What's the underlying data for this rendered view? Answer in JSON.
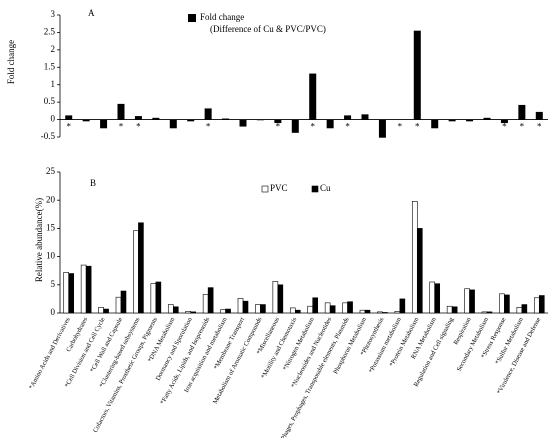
{
  "chart_data": [
    {
      "type": "bar",
      "title": "A",
      "ylabel": "Fold change",
      "series": [
        {
          "name": "Fold change",
          "color": "#000000",
          "values": [
            0.12,
            -0.05,
            -0.25,
            0.45,
            0.1,
            0.05,
            -0.25,
            -0.05,
            0.32,
            0.03,
            -0.2,
            -0.02,
            -0.1,
            -0.38,
            1.32,
            -0.25,
            0.12,
            0.15,
            -0.52,
            0.0,
            2.55,
            -0.25,
            -0.05,
            -0.05,
            0.05,
            -0.1,
            0.42,
            0.22
          ]
        }
      ],
      "legend_note": "(Difference of Cu & PVC/PVC)",
      "annotations": [
        "*",
        null,
        "*",
        "*",
        "*",
        null,
        "*",
        null,
        "*",
        null,
        "*",
        null,
        "*",
        "*",
        "*",
        "*",
        "*",
        null,
        "*",
        "*",
        "*",
        null,
        null,
        null,
        null,
        "*",
        "*",
        "*"
      ],
      "ylim": [
        -0.5,
        3
      ],
      "yticks": [
        -0.5,
        0,
        0.5,
        1,
        1.5,
        2,
        2.5,
        3
      ]
    },
    {
      "type": "grouped_bar",
      "title": "B",
      "ylabel": "Relative abundance(%)",
      "categories": [
        "*Amino Acids and Derivatives",
        "Carbohydrates",
        "*Cell Division and Cell Cycle",
        "*Cell Wall and Capsule",
        "*Clustering-based subsystems",
        "Cofactors, Vitamins, Prosthetic Groups, Pigments",
        "*DNA Metabolism",
        "Dormancy and Sporulation",
        "*Fatty Acids, Lipids, and Isoprenoids",
        "Iron acquisition and metabolism",
        "*Membrane Transport",
        "Metabolism of Aromatic Compounds",
        "*Miscellaneous",
        "*Motility and Chemotaxis",
        "*Nitrogen Metabolism",
        "*Nucleosides and Nucleotides",
        "*Phages, Prophages, Transposable elements, Plasmids",
        "Phosphorus Metabolism",
        "*Photosynthesis",
        "*Potassium metabolism",
        "*Protein Metabolism",
        "RNA Metabolism",
        "Regulation and Cell signaling",
        "Respiration",
        "Secondary Metabolism",
        "*Stress Response",
        "*Sulfur Metabolism",
        "*Virulence, Disease and Defense"
      ],
      "series": [
        {
          "name": "PVC",
          "color": "#ffffff",
          "values": [
            7.2,
            8.5,
            1.0,
            2.8,
            14.6,
            5.2,
            1.5,
            0.3,
            3.3,
            0.6,
            2.6,
            1.5,
            5.6,
            0.9,
            1.2,
            1.8,
            1.8,
            0.5,
            0.2,
            0.3,
            19.8,
            5.5,
            1.2,
            4.3,
            0.2,
            3.4,
            1.0,
            2.7
          ]
        },
        {
          "name": "Cu",
          "color": "#000000",
          "values": [
            7.0,
            8.3,
            0.7,
            3.9,
            16.0,
            5.5,
            1.1,
            0.2,
            4.5,
            0.7,
            2.1,
            1.5,
            5.0,
            0.5,
            2.7,
            1.3,
            2.0,
            0.5,
            0.1,
            2.5,
            15.0,
            5.2,
            1.1,
            4.1,
            0.2,
            3.2,
            1.5,
            3.1
          ]
        }
      ],
      "ylim": [
        0,
        25
      ],
      "yticks": [
        0,
        5,
        10,
        15,
        20,
        25
      ]
    }
  ]
}
